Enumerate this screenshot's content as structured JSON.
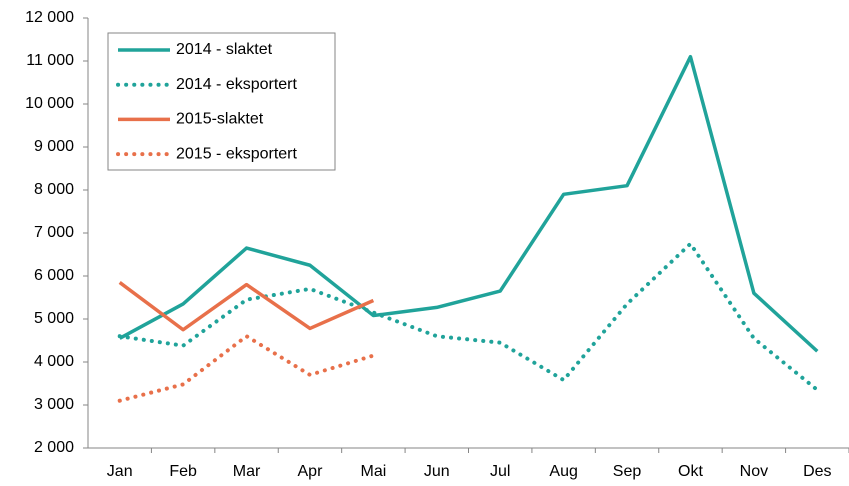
{
  "chart_data": {
    "type": "line",
    "categories": [
      "Jan",
      "Feb",
      "Mar",
      "Apr",
      "Mai",
      "Jun",
      "Jul",
      "Aug",
      "Sep",
      "Okt",
      "Nov",
      "Des"
    ],
    "series": [
      {
        "name": "2014 - slaktet",
        "color": "#20a39a",
        "style": "solid",
        "values": [
          4550,
          5350,
          6650,
          6250,
          5080,
          5270,
          5650,
          7900,
          8100,
          11100,
          5600,
          4250
        ]
      },
      {
        "name": "2014 - eksportert",
        "color": "#20a39a",
        "style": "dotted",
        "values": [
          4600,
          4380,
          5450,
          5700,
          5150,
          4600,
          4450,
          3580,
          5350,
          6750,
          4550,
          3350
        ]
      },
      {
        "name": "2015-slaktet",
        "color": "#e8704a",
        "style": "solid",
        "values": [
          5850,
          4750,
          5800,
          4780,
          5430,
          null,
          null,
          null,
          null,
          null,
          null,
          null
        ]
      },
      {
        "name": "2015 - eksportert",
        "color": "#e8704a",
        "style": "dotted",
        "values": [
          3100,
          3480,
          4600,
          3700,
          4150,
          null,
          null,
          null,
          null,
          null,
          null,
          null
        ]
      }
    ],
    "ylim": [
      2000,
      12000
    ],
    "yticks": [
      {
        "value": 2000,
        "label": "2 000"
      },
      {
        "value": 3000,
        "label": "3 000"
      },
      {
        "value": 4000,
        "label": "4 000"
      },
      {
        "value": 5000,
        "label": "5 000"
      },
      {
        "value": 6000,
        "label": "6 000"
      },
      {
        "value": 7000,
        "label": "7 000"
      },
      {
        "value": 8000,
        "label": "8 000"
      },
      {
        "value": 9000,
        "label": "9 000"
      },
      {
        "value": 10000,
        "label": "10 000"
      },
      {
        "value": 11000,
        "label": "11 000"
      },
      {
        "value": 12000,
        "label": "12 000"
      }
    ],
    "grid": false,
    "legend": "upper left"
  }
}
